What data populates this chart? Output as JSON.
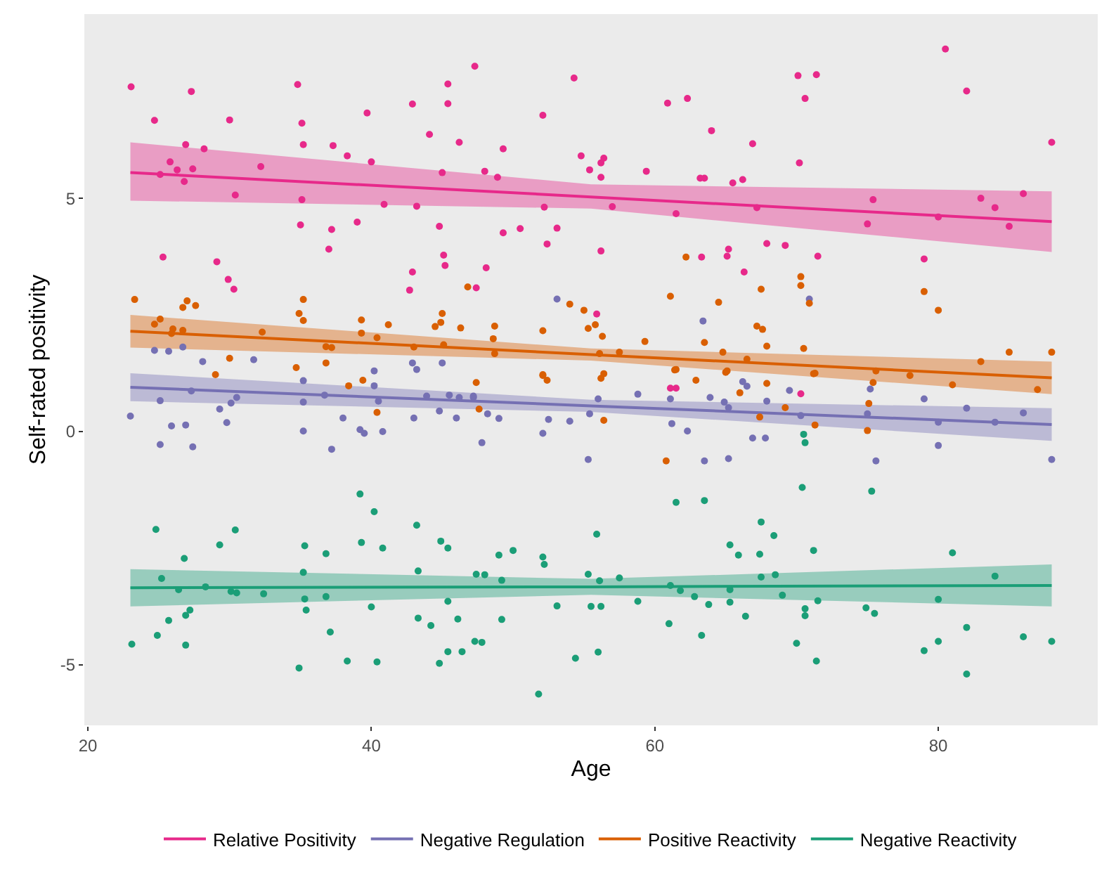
{
  "chart_data": {
    "type": "scatter",
    "xlabel": "Age",
    "ylabel": "Self-rated positivity",
    "xlim": [
      19.75,
      91.25
    ],
    "ylim": [
      -6.3,
      8.95
    ],
    "xticks": [
      20,
      40,
      60,
      80
    ],
    "yticks": [
      -5,
      0,
      5
    ],
    "grid": false,
    "legend": "bottom",
    "series": [
      {
        "type": "line",
        "name": "Relative Positivity",
        "color": "#e7298a",
        "marker": "none",
        "x": [
          23,
          55.5,
          88
        ],
        "values": [
          5.55,
          5.03,
          4.5
        ],
        "lower": [
          4.95,
          4.78,
          3.85
        ],
        "upper": [
          6.2,
          5.3,
          5.15
        ]
      },
      {
        "type": "line",
        "name": "Negative Regulation",
        "color": "#7570b3",
        "marker": "none",
        "x": [
          23,
          55.5,
          88
        ],
        "values": [
          0.95,
          0.55,
          0.15
        ],
        "lower": [
          0.65,
          0.42,
          -0.2
        ],
        "upper": [
          1.25,
          0.68,
          0.5
        ]
      },
      {
        "type": "line",
        "name": "Positive Reactivity",
        "color": "#d95f02",
        "marker": "none",
        "x": [
          23,
          55.5,
          88
        ],
        "values": [
          2.15,
          1.65,
          1.15
        ],
        "lower": [
          1.8,
          1.52,
          0.8
        ],
        "upper": [
          2.5,
          1.78,
          1.5
        ]
      },
      {
        "type": "line",
        "name": "Negative Reactivity",
        "color": "#1b9e77",
        "marker": "none",
        "x": [
          23,
          55.5,
          88
        ],
        "values": [
          -3.35,
          -3.33,
          -3.3
        ],
        "lower": [
          -3.75,
          -3.5,
          -3.75
        ],
        "upper": [
          -2.95,
          -3.16,
          -2.85
        ]
      },
      {
        "color": "#e7298a",
        "marker": "circle",
        "x": [
          23.05,
          27.3,
          24.7,
          30.0,
          34.8,
          35.1,
          35.2,
          37.3,
          38.3,
          39.7,
          40.0,
          42.9,
          45.4,
          45.4,
          44.1,
          46.2,
          47.3,
          26.9,
          28.2,
          25.8,
          26.3,
          25.1,
          27.4,
          26.8,
          32.2,
          30.4,
          35.1,
          40.9,
          43.2,
          45.0,
          35.0,
          37.2,
          39.0,
          44.8,
          37.0,
          25.3,
          29.1,
          29.9,
          30.3,
          45.1,
          45.2,
          42.9,
          42.7,
          47.4,
          54.3,
          52.1,
          49.3,
          48.0,
          48.9,
          54.8,
          55.4,
          56.2,
          56.4,
          56.2,
          59.4,
          60.9,
          62.3,
          64.0,
          66.9,
          70.1,
          71.4,
          70.6,
          70.2,
          63.2,
          63.5,
          65.5,
          66.2,
          52.2,
          57.0,
          61.5,
          67.2,
          75.4,
          75.0,
          49.3,
          50.5,
          53.1,
          52.4,
          56.2,
          48.1,
          65.2,
          65.1,
          67.9,
          69.2,
          71.5,
          66.3,
          55.9,
          63.3,
          61.1,
          61.5,
          70.3,
          80.5,
          82,
          80,
          83,
          84,
          86,
          88,
          79,
          85
        ],
        "values": [
          7.39,
          7.29,
          6.67,
          6.68,
          7.44,
          6.61,
          6.15,
          6.13,
          5.91,
          6.83,
          5.78,
          7.02,
          7.45,
          7.03,
          6.37,
          6.2,
          7.83,
          6.15,
          6.06,
          5.78,
          5.61,
          5.51,
          5.63,
          5.36,
          5.68,
          5.07,
          4.97,
          4.87,
          4.83,
          5.55,
          4.43,
          4.33,
          4.49,
          4.4,
          3.91,
          3.74,
          3.64,
          3.26,
          3.05,
          3.78,
          3.56,
          3.42,
          3.03,
          3.08,
          7.58,
          6.78,
          6.06,
          5.58,
          5.45,
          5.91,
          5.61,
          5.76,
          5.86,
          5.45,
          5.58,
          7.04,
          7.14,
          6.45,
          6.17,
          7.63,
          7.65,
          7.14,
          5.76,
          5.43,
          5.43,
          5.33,
          5.4,
          4.81,
          4.82,
          4.67,
          4.8,
          4.97,
          4.45,
          4.26,
          4.35,
          4.36,
          4.02,
          3.87,
          3.51,
          3.91,
          3.76,
          4.03,
          3.99,
          3.76,
          3.42,
          2.52,
          3.74,
          0.93,
          0.93,
          0.81,
          8.2,
          7.3,
          4.6,
          5.0,
          4.8,
          5.1,
          6.2,
          3.7,
          4.4
        ]
      },
      {
        "color": "#7570b3",
        "marker": "circle",
        "x": [
          24.7,
          25.7,
          26.7,
          28.1,
          31.7,
          40.2,
          42.9,
          45.0,
          43.2,
          23.0,
          25.1,
          25.9,
          26.9,
          25.1,
          27.4,
          27.3,
          29.3,
          29.8,
          30.1,
          30.5,
          35.2,
          35.2,
          35.2,
          36.7,
          37.2,
          38.0,
          39.2,
          39.5,
          40.2,
          40.5,
          40.8,
          43.0,
          43.9,
          44.8,
          45.5,
          46.0,
          47.2,
          46.2,
          47.2,
          48.2,
          49.0,
          47.8,
          52.5,
          52.1,
          54.0,
          55.4,
          56.0,
          55.3,
          58.8,
          61.1,
          61.2,
          62.3,
          63.9,
          63.5,
          64.9,
          65.2,
          65.2,
          66.2,
          66.5,
          66.9,
          67.8,
          67.9,
          69.5,
          70.3,
          75.2,
          75.0,
          75.6,
          53.1,
          63.4,
          70.9,
          79,
          80,
          80,
          82,
          84,
          86,
          88
        ],
        "values": [
          1.74,
          1.72,
          1.81,
          1.5,
          1.54,
          1.3,
          1.47,
          1.47,
          1.33,
          0.33,
          0.66,
          0.12,
          0.14,
          -0.28,
          -0.33,
          0.87,
          0.48,
          0.19,
          0.61,
          0.73,
          1.09,
          0.63,
          0.01,
          0.78,
          -0.38,
          0.29,
          0.04,
          -0.04,
          0.98,
          0.65,
          0.0,
          0.29,
          0.76,
          0.44,
          0.78,
          0.29,
          0.73,
          0.73,
          0.76,
          0.38,
          0.28,
          -0.24,
          0.26,
          -0.04,
          0.22,
          0.38,
          0.7,
          -0.6,
          0.8,
          0.7,
          0.17,
          0.01,
          0.73,
          -0.63,
          0.63,
          0.51,
          -0.58,
          1.07,
          0.97,
          -0.14,
          -0.14,
          0.65,
          0.88,
          0.34,
          0.91,
          0.38,
          -0.63,
          2.84,
          2.37,
          2.84,
          0.7,
          -0.3,
          0.2,
          0.5,
          0.2,
          0.4,
          -0.6
        ]
      },
      {
        "color": "#d95f02",
        "marker": "circle",
        "x": [
          23.3,
          27.0,
          26.7,
          27.6,
          25.1,
          24.7,
          26.0,
          26.7,
          25.9,
          32.3,
          35.2,
          34.9,
          35.2,
          39.3,
          41.2,
          39.3,
          40.4,
          36.8,
          37.2,
          43.0,
          44.5,
          44.9,
          45.0,
          46.3,
          45.1,
          30.0,
          34.7,
          36.8,
          29.0,
          38.4,
          39.4,
          40.4,
          47.4,
          47.6,
          52.1,
          52.4,
          56.2,
          56.4,
          56.4,
          61.4,
          60.8,
          62.9,
          65.0,
          66.0,
          67.9,
          67.4,
          69.2,
          71.2,
          71.3,
          75.1,
          75.0,
          75.4,
          46.8,
          62.2,
          61.1,
          64.5,
          67.5,
          70.3,
          70.3,
          70.9,
          54.0,
          55.0,
          48.7,
          48.6,
          52.1,
          55.3,
          55.8,
          56.3,
          59.3,
          63.5,
          67.2,
          67.6,
          67.9,
          70.5,
          64.8,
          48.7,
          56.1,
          57.5,
          66.5,
          71.3,
          75.6,
          61.5,
          65.1,
          52.1,
          78,
          80,
          81,
          83,
          85,
          87,
          88,
          79
        ],
        "values": [
          2.83,
          2.8,
          2.66,
          2.7,
          2.41,
          2.3,
          2.2,
          2.17,
          2.1,
          2.13,
          2.83,
          2.53,
          2.38,
          2.39,
          2.29,
          2.11,
          2.01,
          1.82,
          1.8,
          1.81,
          2.25,
          2.34,
          2.53,
          2.22,
          1.86,
          1.57,
          1.37,
          1.47,
          1.22,
          0.98,
          1.1,
          0.41,
          1.05,
          0.48,
          1.2,
          1.1,
          1.14,
          1.24,
          0.24,
          1.32,
          -0.63,
          1.1,
          1.27,
          0.83,
          1.03,
          0.31,
          0.51,
          1.24,
          0.14,
          0.6,
          0.02,
          1.05,
          3.1,
          3.74,
          2.9,
          2.77,
          3.05,
          3.32,
          3.13,
          2.75,
          2.73,
          2.6,
          2.26,
          1.99,
          2.16,
          2.21,
          2.29,
          2.04,
          1.93,
          1.91,
          2.26,
          2.19,
          1.83,
          1.78,
          1.7,
          1.67,
          1.67,
          1.7,
          1.55,
          1.25,
          1.3,
          1.33,
          1.3,
          1.22,
          1.2,
          2.6,
          1.0,
          1.5,
          1.7,
          0.9,
          1.7,
          3.0
        ]
      },
      {
        "color": "#1b9e77",
        "marker": "circle",
        "x": [
          24.8,
          30.4,
          29.3,
          26.8,
          25.2,
          26.4,
          28.3,
          30.1,
          30.5,
          32.4,
          27.2,
          26.9,
          25.7,
          24.9,
          23.1,
          26.9,
          35.3,
          35.2,
          35.3,
          35.4,
          36.8,
          36.8,
          37.1,
          34.9,
          38.3,
          40.4,
          39.2,
          40.2,
          39.3,
          40.8,
          40.0,
          43.2,
          44.9,
          45.4,
          43.3,
          45.4,
          43.3,
          44.2,
          46.1,
          45.4,
          44.8,
          46.4,
          47.3,
          47.4,
          48.0,
          49.2,
          49.0,
          50.0,
          52.1,
          52.2,
          49.2,
          47.8,
          53.1,
          51.8,
          54.4,
          56.0,
          55.5,
          56.2,
          55.9,
          55.3,
          56.1,
          57.5,
          58.8,
          61.0,
          61.1,
          61.8,
          61.5,
          63.5,
          62.8,
          63.8,
          63.3,
          65.3,
          65.9,
          65.3,
          65.3,
          66.4,
          67.4,
          67.5,
          68.4,
          67.5,
          68.5,
          69.0,
          70.0,
          70.6,
          70.6,
          71.2,
          71.5,
          71.4,
          70.4,
          75.3,
          74.9,
          75.5,
          70.5,
          70.6,
          79,
          80,
          81,
          82,
          82,
          84,
          86,
          88,
          80
        ],
        "values": [
          -2.1,
          -2.11,
          -2.43,
          -2.72,
          -3.15,
          -3.39,
          -3.33,
          -3.43,
          -3.46,
          -3.48,
          -3.83,
          -3.94,
          -4.05,
          -4.37,
          -4.56,
          -4.58,
          -2.45,
          -3.02,
          -3.59,
          -3.83,
          -2.62,
          -3.54,
          -4.3,
          -5.07,
          -4.92,
          -4.94,
          -1.34,
          -1.72,
          -2.38,
          -2.5,
          -3.76,
          -2.01,
          -2.35,
          -2.5,
          -2.99,
          -3.64,
          -4.0,
          -4.16,
          -4.02,
          -4.72,
          -4.97,
          -4.72,
          -4.5,
          -3.06,
          -3.07,
          -3.19,
          -2.65,
          -2.55,
          -2.69,
          -2.85,
          -4.03,
          -4.52,
          -3.74,
          -5.63,
          -4.86,
          -4.73,
          -3.75,
          -3.75,
          -2.2,
          -3.06,
          -3.2,
          -3.14,
          -3.64,
          -4.12,
          -3.3,
          -3.41,
          -1.52,
          -1.48,
          -3.54,
          -3.71,
          -4.37,
          -2.43,
          -2.65,
          -3.39,
          -3.66,
          -3.96,
          -2.63,
          -1.94,
          -2.23,
          -3.12,
          -3.07,
          -3.51,
          -4.54,
          -3.8,
          -3.95,
          -2.55,
          -3.63,
          -4.92,
          -1.2,
          -1.28,
          -3.78,
          -3.9,
          -0.06,
          -0.24,
          -4.7,
          -4.5,
          -2.6,
          -5.2,
          -4.2,
          -3.1,
          -4.4,
          -4.5,
          -3.6
        ]
      }
    ]
  }
}
